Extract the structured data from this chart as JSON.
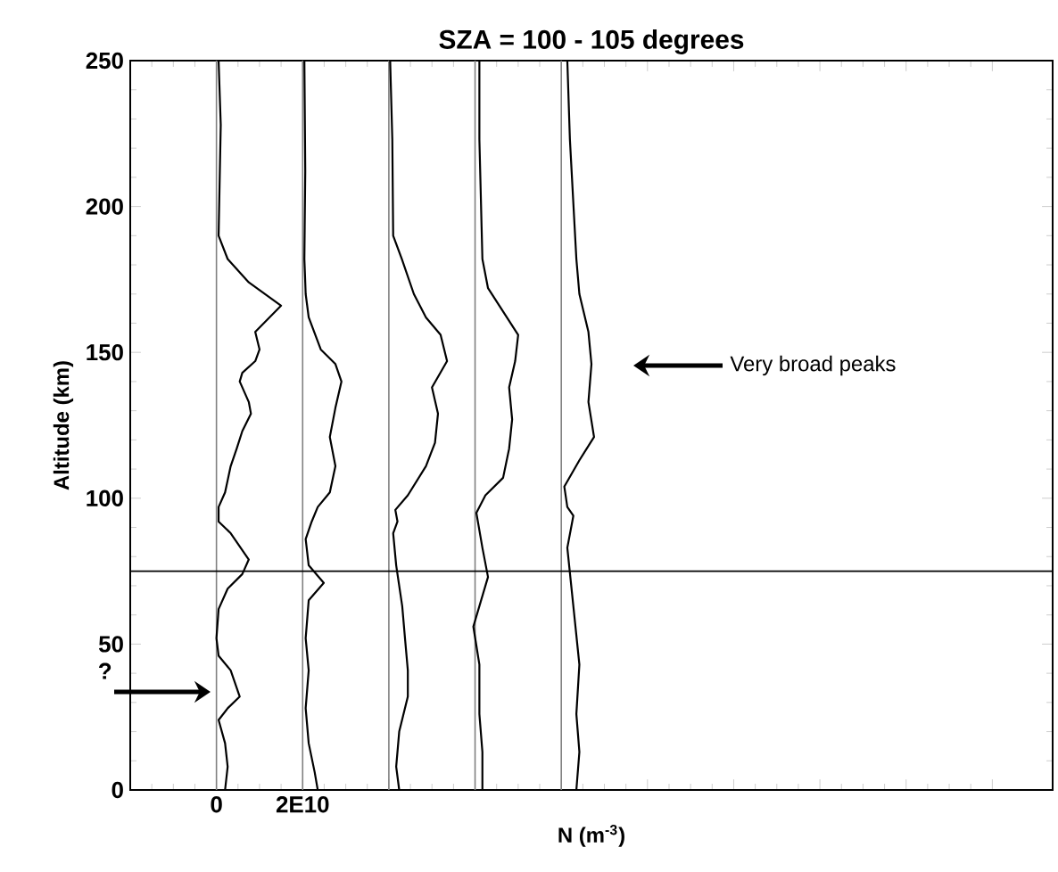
{
  "chart_data": {
    "type": "line",
    "title": "SZA = 100 - 105 degrees",
    "xlabel": "N (m$^{-3}$)",
    "ylabel": "Altitude (km)",
    "xlim": [
      -20000000000.0,
      194000000000.0
    ],
    "ylim": [
      0,
      250
    ],
    "xticks": [
      {
        "value": -20000000000.0,
        "label": null
      },
      {
        "value": 0,
        "label": "0"
      },
      {
        "value": 20000000000.0,
        "label": "2E10"
      },
      {
        "value": 40000000000.0,
        "label": null
      },
      {
        "value": 60000000000.0,
        "label": null
      },
      {
        "value": 80000000000.0,
        "label": null
      },
      {
        "value": 100000000000.0,
        "label": null
      },
      {
        "value": 120000000000.0,
        "label": null
      },
      {
        "value": 140000000000.0,
        "label": null
      },
      {
        "value": 160000000000.0,
        "label": null
      },
      {
        "value": 180000000000.0,
        "label": null
      }
    ],
    "yticks": [
      0,
      50,
      100,
      150,
      200,
      250
    ],
    "series": [
      {
        "color": "#000000",
        "x": [
          500000000.0,
          1000000000.0,
          500000000.0,
          2600000000.0,
          7500000000.0,
          15000000000.0,
          9000000000.0,
          10000000000.0,
          9000000000.0,
          6000000000.0,
          5400000000.0,
          7500000000.0,
          8000000000.0,
          6000000000.0,
          4700000000.0,
          3300000000.0,
          2000000000.0,
          500000000.0,
          500000000.0,
          3300000000.0,
          7500000000.0,
          6000000000.0,
          2600000000.0,
          500000000.0,
          0,
          500000000.0,
          3300000000.0,
          5400000000.0,
          2600000000.0,
          500000000.0,
          2000000000.0,
          2600000000.0,
          2000000000.0
        ],
        "values": [
          250,
          228,
          190,
          182,
          174,
          166,
          157,
          151,
          147,
          143,
          140,
          133,
          129,
          123,
          117,
          111,
          102,
          97,
          92,
          88,
          79,
          74,
          69,
          62,
          52,
          46,
          41,
          32,
          28,
          24,
          16,
          8,
          0
        ]
      },
      {
        "color": "#000000",
        "x": [
          20400000000.0,
          20600000000.0,
          20400000000.0,
          20700000000.0,
          21400000000.0,
          24200000000.0,
          27600000000.0,
          29000000000.0,
          27600000000.0,
          26300000000.0,
          27600000000.0,
          26300000000.0,
          23500000000.0,
          22100000000.0,
          20700000000.0,
          21400000000.0,
          24900000000.0,
          21400000000.0,
          20700000000.0,
          21400000000.0,
          20700000000.0,
          21400000000.0,
          22800000000.0,
          23500000000.0
        ],
        "values": [
          250,
          212,
          182,
          170,
          162,
          151,
          146,
          140,
          131,
          121,
          111,
          102,
          97,
          92,
          86,
          77,
          71,
          65,
          52,
          41,
          28,
          16,
          6,
          0
        ]
      },
      {
        "color": "#000000",
        "x": [
          40300000000.0,
          40800000000.0,
          41000000000.0,
          43000000000.0,
          45800000000.0,
          48600000000.0,
          52000000000.0,
          53500000000.0,
          50000000000.0,
          51400000000.0,
          50700000000.0,
          48600000000.0,
          44400000000.0,
          41500000000.0,
          42000000000.0,
          41000000000.0,
          41700000000.0,
          43100000000.0,
          43800000000.0,
          44400000000.0,
          44400000000.0,
          42400000000.0,
          41700000000.0,
          42400000000.0
        ],
        "values": [
          250,
          223,
          190,
          182,
          170,
          162,
          156,
          147,
          138,
          129,
          119,
          111,
          101,
          96,
          92,
          88,
          77,
          63,
          51,
          41,
          32,
          20,
          8,
          0
        ]
      },
      {
        "color": "#000000",
        "x": [
          61000000000.0,
          61000000000.0,
          61700000000.0,
          63000000000.0,
          66500000000.0,
          70000000000.0,
          69300000000.0,
          67900000000.0,
          68600000000.0,
          67900000000.0,
          66500000000.0,
          62400000000.0,
          60300000000.0,
          61700000000.0,
          63000000000.0,
          59600000000.0,
          61000000000.0,
          61000000000.0,
          61700000000.0,
          61700000000.0
        ],
        "values": [
          250,
          223,
          182,
          172,
          164,
          156,
          147,
          138,
          127,
          117,
          107,
          101,
          95,
          83,
          73,
          56,
          43,
          26,
          13,
          0
        ]
      },
      {
        "color": "#000000",
        "x": [
          81400000000.0,
          82000000000.0,
          83500000000.0,
          84200000000.0,
          86300000000.0,
          87000000000.0,
          86300000000.0,
          87600000000.0,
          84200000000.0,
          80700000000.0,
          81400000000.0,
          82800000000.0,
          81400000000.0,
          82800000000.0,
          84200000000.0,
          83500000000.0,
          84200000000.0,
          83500000000.0
        ],
        "values": [
          250,
          223,
          182,
          170,
          157,
          146,
          133,
          121,
          113,
          104,
          97,
          94,
          83,
          63,
          43,
          26,
          13,
          0
        ]
      }
    ],
    "ref_lines": [
      {
        "axis": "x",
        "value": 0,
        "color": "#808080"
      },
      {
        "axis": "x",
        "value": 20000000000.0,
        "color": "#808080"
      },
      {
        "axis": "x",
        "value": 40000000000.0,
        "color": "#808080"
      },
      {
        "axis": "x",
        "value": 60000000000.0,
        "color": "#808080"
      },
      {
        "axis": "x",
        "value": 80000000000.0,
        "color": "#808080"
      },
      {
        "axis": "y",
        "value": 75,
        "color": "#000000"
      }
    ],
    "annotations": [
      "Very broad peaks",
      "?"
    ]
  }
}
